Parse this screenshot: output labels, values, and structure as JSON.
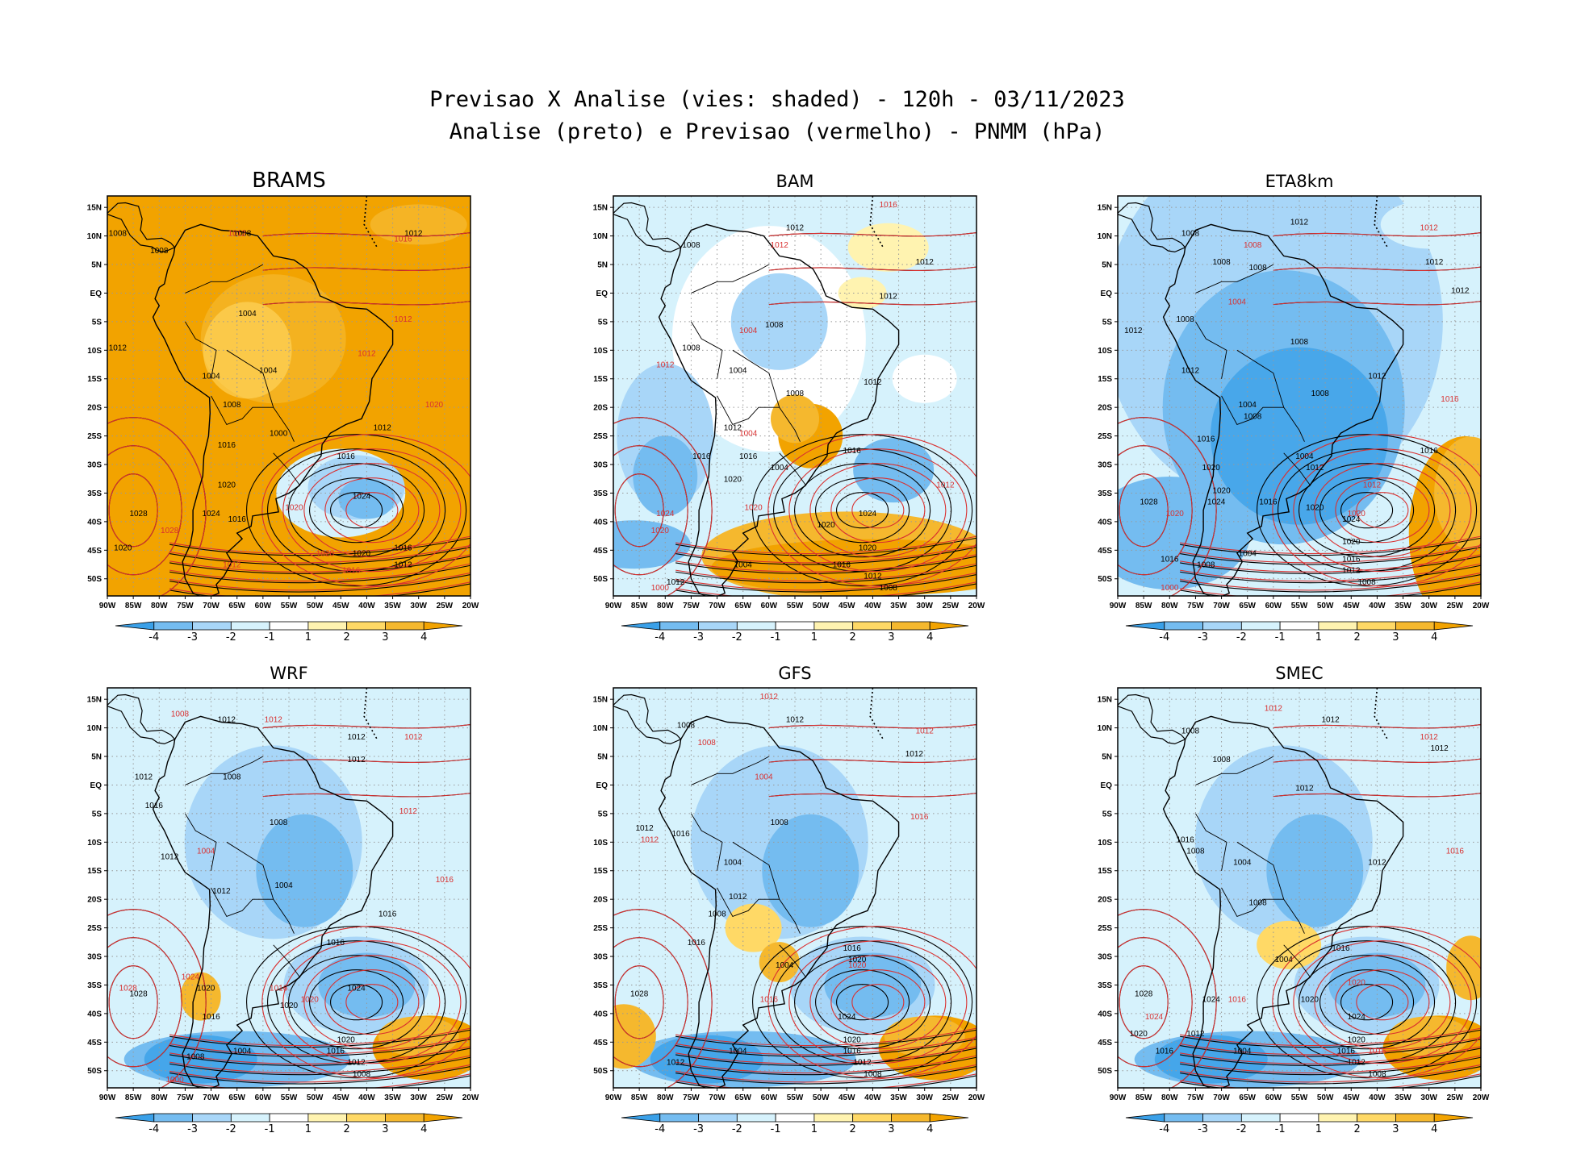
{
  "title": {
    "line1": "Previsao X Analise (vies: shaded) - 120h - 03/11/2023",
    "line2": "Analise (preto) e Previsao (vermelho) - PNMM (hPa)"
  },
  "axes": {
    "lon_labels": [
      "90W",
      "85W",
      "80W",
      "75W",
      "70W",
      "65W",
      "60W",
      "55W",
      "50W",
      "45W",
      "40W",
      "35W",
      "30W",
      "25W",
      "20W"
    ],
    "lat_labels": [
      "15N",
      "10N",
      "5N",
      "EQ",
      "5S",
      "10S",
      "15S",
      "20S",
      "25S",
      "30S",
      "35S",
      "40S",
      "45S",
      "50S"
    ],
    "lon_range": [
      -90,
      -20
    ],
    "lat_range": [
      -53,
      17
    ]
  },
  "colorbar": {
    "labels": [
      "-4",
      "-3",
      "-2",
      "-1",
      "1",
      "2",
      "3",
      "4"
    ],
    "colors": [
      "#3aa0e8",
      "#74bcf0",
      "#a8d6f8",
      "#d6f2fc",
      "#ffffff",
      "#fff3b0",
      "#ffd966",
      "#f5b82e",
      "#f2a300"
    ]
  },
  "colors": {
    "analysis": "#000000",
    "forecast": "#d93030",
    "land_outline": "#000000",
    "grid": "#999999"
  },
  "panels": [
    {
      "name": "BRAMS",
      "bias": "warm",
      "labels_black": [
        {
          "t": "1008",
          "lon": -88,
          "lat": 10
        },
        {
          "t": "1008",
          "lon": -80,
          "lat": 7
        },
        {
          "t": "1008",
          "lon": -64,
          "lat": 10
        },
        {
          "t": "1012",
          "lon": -31,
          "lat": 10
        },
        {
          "t": "1004",
          "lon": -63,
          "lat": -4
        },
        {
          "t": "1012",
          "lon": -88,
          "lat": -10
        },
        {
          "t": "1004",
          "lon": -70,
          "lat": -15
        },
        {
          "t": "1004",
          "lon": -59,
          "lat": -14
        },
        {
          "t": "1008",
          "lon": -66,
          "lat": -20
        },
        {
          "t": "1012",
          "lon": -37,
          "lat": -24
        },
        {
          "t": "1000",
          "lon": -57,
          "lat": -25
        },
        {
          "t": "1016",
          "lon": -67,
          "lat": -27
        },
        {
          "t": "1016",
          "lon": -44,
          "lat": -29
        },
        {
          "t": "1020",
          "lon": -67,
          "lat": -34
        },
        {
          "t": "1024",
          "lon": -41,
          "lat": -36
        },
        {
          "t": "1028",
          "lon": -84,
          "lat": -39
        },
        {
          "t": "1024",
          "lon": -70,
          "lat": -39
        },
        {
          "t": "1016",
          "lon": -65,
          "lat": -40
        },
        {
          "t": "1020",
          "lon": -87,
          "lat": -45
        },
        {
          "t": "1020",
          "lon": -41,
          "lat": -46
        },
        {
          "t": "1016",
          "lon": -33,
          "lat": -45
        },
        {
          "t": "1012",
          "lon": -33,
          "lat": -48
        }
      ],
      "labels_red": [
        {
          "t": "1016",
          "lon": -33,
          "lat": 9
        },
        {
          "t": "1012",
          "lon": -65,
          "lat": 10
        },
        {
          "t": "1012",
          "lon": -33,
          "lat": -5
        },
        {
          "t": "1012",
          "lon": -40,
          "lat": -11
        },
        {
          "t": "1020",
          "lon": -27,
          "lat": -20
        },
        {
          "t": "1020",
          "lon": -54,
          "lat": -38
        },
        {
          "t": "1020",
          "lon": -48,
          "lat": -46
        },
        {
          "t": "1016",
          "lon": -43,
          "lat": -49
        },
        {
          "t": "1012",
          "lon": -66,
          "lat": -48
        },
        {
          "t": "1028",
          "lon": -78,
          "lat": -42
        }
      ]
    },
    {
      "name": "BAM",
      "bias": "cold",
      "labels_black": [
        {
          "t": "1008",
          "lon": -75,
          "lat": 8
        },
        {
          "t": "1012",
          "lon": -55,
          "lat": 11
        },
        {
          "t": "1012",
          "lon": -30,
          "lat": 5
        },
        {
          "t": "1012",
          "lon": -37,
          "lat": -1
        },
        {
          "t": "1008",
          "lon": -59,
          "lat": -6
        },
        {
          "t": "1008",
          "lon": -75,
          "lat": -10
        },
        {
          "t": "1004",
          "lon": -66,
          "lat": -14
        },
        {
          "t": "1012",
          "lon": -40,
          "lat": -16
        },
        {
          "t": "1008",
          "lon": -55,
          "lat": -18
        },
        {
          "t": "1012",
          "lon": -67,
          "lat": -24
        },
        {
          "t": "1016",
          "lon": -73,
          "lat": -29
        },
        {
          "t": "1016",
          "lon": -64,
          "lat": -29
        },
        {
          "t": "1004",
          "lon": -58,
          "lat": -31
        },
        {
          "t": "1020",
          "lon": -67,
          "lat": -33
        },
        {
          "t": "1016",
          "lon": -44,
          "lat": -28
        },
        {
          "t": "1024",
          "lon": -41,
          "lat": -39
        },
        {
          "t": "1020",
          "lon": -49,
          "lat": -41
        },
        {
          "t": "1020",
          "lon": -41,
          "lat": -45
        },
        {
          "t": "1016",
          "lon": -46,
          "lat": -48
        },
        {
          "t": "1012",
          "lon": -40,
          "lat": -50
        },
        {
          "t": "1008",
          "lon": -37,
          "lat": -52
        },
        {
          "t": "1004",
          "lon": -65,
          "lat": -48
        },
        {
          "t": "1012",
          "lon": -78,
          "lat": -51
        }
      ],
      "labels_red": [
        {
          "t": "1016",
          "lon": -37,
          "lat": 15
        },
        {
          "t": "1012",
          "lon": -58,
          "lat": 8
        },
        {
          "t": "1004",
          "lon": -64,
          "lat": -7
        },
        {
          "t": "1012",
          "lon": -80,
          "lat": -13
        },
        {
          "t": "1024",
          "lon": -80,
          "lat": -39
        },
        {
          "t": "1020",
          "lon": -81,
          "lat": -42
        },
        {
          "t": "1020",
          "lon": -63,
          "lat": -38
        },
        {
          "t": "1012",
          "lon": -26,
          "lat": -34
        },
        {
          "t": "1000",
          "lon": -81,
          "lat": -52
        },
        {
          "t": "1004",
          "lon": -64,
          "lat": -25
        }
      ]
    },
    {
      "name": "ETA8km",
      "bias": "cold",
      "labels_black": [
        {
          "t": "1012",
          "lon": -55,
          "lat": 12
        },
        {
          "t": "1008",
          "lon": -76,
          "lat": 10
        },
        {
          "t": "1008",
          "lon": -70,
          "lat": 5
        },
        {
          "t": "1008",
          "lon": -63,
          "lat": 4
        },
        {
          "t": "1012",
          "lon": -29,
          "lat": 5
        },
        {
          "t": "1012",
          "lon": -24,
          "lat": 0
        },
        {
          "t": "1008",
          "lon": -77,
          "lat": -5
        },
        {
          "t": "1012",
          "lon": -87,
          "lat": -7
        },
        {
          "t": "1008",
          "lon": -55,
          "lat": -9
        },
        {
          "t": "1012",
          "lon": -76,
          "lat": -14
        },
        {
          "t": "1012",
          "lon": -40,
          "lat": -15
        },
        {
          "t": "1008",
          "lon": -51,
          "lat": -18
        },
        {
          "t": "1004",
          "lon": -65,
          "lat": -20
        },
        {
          "t": "1008",
          "lon": -64,
          "lat": -22
        },
        {
          "t": "1016",
          "lon": -73,
          "lat": -26
        },
        {
          "t": "1004",
          "lon": -54,
          "lat": -29
        },
        {
          "t": "1016",
          "lon": -30,
          "lat": -28
        },
        {
          "t": "1020",
          "lon": -72,
          "lat": -31
        },
        {
          "t": "1020",
          "lon": -70,
          "lat": -35
        },
        {
          "t": "1012",
          "lon": -52,
          "lat": -31
        },
        {
          "t": "1016",
          "lon": -61,
          "lat": -37
        },
        {
          "t": "1020",
          "lon": -52,
          "lat": -38
        },
        {
          "t": "1024",
          "lon": -45,
          "lat": -40
        },
        {
          "t": "1028",
          "lon": -84,
          "lat": -37
        },
        {
          "t": "1024",
          "lon": -71,
          "lat": -37
        },
        {
          "t": "1020",
          "lon": -45,
          "lat": -44
        },
        {
          "t": "1016",
          "lon": -45,
          "lat": -47
        },
        {
          "t": "1012",
          "lon": -45,
          "lat": -49
        },
        {
          "t": "1008",
          "lon": -42,
          "lat": -51
        },
        {
          "t": "1004",
          "lon": -65,
          "lat": -46
        },
        {
          "t": "1016",
          "lon": -80,
          "lat": -47
        },
        {
          "t": "1008",
          "lon": -73,
          "lat": -48
        }
      ],
      "labels_red": [
        {
          "t": "1012",
          "lon": -30,
          "lat": 11
        },
        {
          "t": "1008",
          "lon": -64,
          "lat": 8
        },
        {
          "t": "1004",
          "lon": -67,
          "lat": -2
        },
        {
          "t": "1016",
          "lon": -26,
          "lat": -19
        },
        {
          "t": "1012",
          "lon": -41,
          "lat": -34
        },
        {
          "t": "1020",
          "lon": -44,
          "lat": -39
        },
        {
          "t": "1020",
          "lon": -79,
          "lat": -39
        },
        {
          "t": "1000",
          "lon": -80,
          "lat": -52
        }
      ]
    },
    {
      "name": "WRF",
      "bias": "mixed",
      "labels_black": [
        {
          "t": "1012",
          "lon": -67,
          "lat": 11
        },
        {
          "t": "1012",
          "lon": -42,
          "lat": 8
        },
        {
          "t": "1012",
          "lon": -42,
          "lat": 4
        },
        {
          "t": "1012",
          "lon": -83,
          "lat": 1
        },
        {
          "t": "1016",
          "lon": -81,
          "lat": -4
        },
        {
          "t": "1008",
          "lon": -66,
          "lat": 1
        },
        {
          "t": "1008",
          "lon": -57,
          "lat": -7
        },
        {
          "t": "1012",
          "lon": -78,
          "lat": -13
        },
        {
          "t": "1004",
          "lon": -56,
          "lat": -18
        },
        {
          "t": "1012",
          "lon": -68,
          "lat": -19
        },
        {
          "t": "1016",
          "lon": -36,
          "lat": -23
        },
        {
          "t": "1016",
          "lon": -46,
          "lat": -28
        },
        {
          "t": "1020",
          "lon": -71,
          "lat": -36
        },
        {
          "t": "1024",
          "lon": -42,
          "lat": -36
        },
        {
          "t": "1020",
          "lon": -55,
          "lat": -39
        },
        {
          "t": "1028",
          "lon": -84,
          "lat": -37
        },
        {
          "t": "1016",
          "lon": -70,
          "lat": -41
        },
        {
          "t": "1020",
          "lon": -44,
          "lat": -45
        },
        {
          "t": "1016",
          "lon": -46,
          "lat": -47
        },
        {
          "t": "1012",
          "lon": -42,
          "lat": -49
        },
        {
          "t": "1008",
          "lon": -41,
          "lat": -51
        },
        {
          "t": "1004",
          "lon": -64,
          "lat": -47
        },
        {
          "t": "1008",
          "lon": -73,
          "lat": -48
        }
      ],
      "labels_red": [
        {
          "t": "1008",
          "lon": -76,
          "lat": 12
        },
        {
          "t": "1012",
          "lon": -58,
          "lat": 11
        },
        {
          "t": "1012",
          "lon": -31,
          "lat": 8
        },
        {
          "t": "1012",
          "lon": -32,
          "lat": -5
        },
        {
          "t": "1004",
          "lon": -71,
          "lat": -12
        },
        {
          "t": "1016",
          "lon": -25,
          "lat": -17
        },
        {
          "t": "1024",
          "lon": -74,
          "lat": -34
        },
        {
          "t": "1028",
          "lon": -86,
          "lat": -36
        },
        {
          "t": "1016",
          "lon": -57,
          "lat": -36
        },
        {
          "t": "1020",
          "lon": -51,
          "lat": -38
        },
        {
          "t": "1000",
          "lon": -77,
          "lat": -52
        }
      ]
    },
    {
      "name": "GFS",
      "bias": "mixed",
      "labels_black": [
        {
          "t": "1008",
          "lon": -76,
          "lat": 10
        },
        {
          "t": "1012",
          "lon": -55,
          "lat": 11
        },
        {
          "t": "1012",
          "lon": -32,
          "lat": 5
        },
        {
          "t": "1012",
          "lon": -84,
          "lat": -8
        },
        {
          "t": "1016",
          "lon": -77,
          "lat": -9
        },
        {
          "t": "1008",
          "lon": -58,
          "lat": -7
        },
        {
          "t": "1004",
          "lon": -67,
          "lat": -14
        },
        {
          "t": "1012",
          "lon": -66,
          "lat": -20
        },
        {
          "t": "1008",
          "lon": -70,
          "lat": -23
        },
        {
          "t": "1016",
          "lon": -74,
          "lat": -28
        },
        {
          "t": "1016",
          "lon": -44,
          "lat": -29
        },
        {
          "t": "1020",
          "lon": -43,
          "lat": -31
        },
        {
          "t": "1004",
          "lon": -57,
          "lat": -32
        },
        {
          "t": "1028",
          "lon": -85,
          "lat": -37
        },
        {
          "t": "1024",
          "lon": -45,
          "lat": -41
        },
        {
          "t": "1020",
          "lon": -44,
          "lat": -45
        },
        {
          "t": "1016",
          "lon": -44,
          "lat": -47
        },
        {
          "t": "1012",
          "lon": -42,
          "lat": -49
        },
        {
          "t": "1008",
          "lon": -40,
          "lat": -51
        },
        {
          "t": "1004",
          "lon": -66,
          "lat": -47
        },
        {
          "t": "1012",
          "lon": -78,
          "lat": -49
        }
      ],
      "labels_red": [
        {
          "t": "1012",
          "lon": -60,
          "lat": 15
        },
        {
          "t": "1012",
          "lon": -30,
          "lat": 9
        },
        {
          "t": "1008",
          "lon": -72,
          "lat": 7
        },
        {
          "t": "1004",
          "lon": -61,
          "lat": 1
        },
        {
          "t": "1012",
          "lon": -83,
          "lat": -10
        },
        {
          "t": "1016",
          "lon": -31,
          "lat": -6
        },
        {
          "t": "1020",
          "lon": -43,
          "lat": -32
        },
        {
          "t": "1016",
          "lon": -60,
          "lat": -38
        }
      ]
    },
    {
      "name": "SMEC",
      "bias": "mixed",
      "labels_black": [
        {
          "t": "1012",
          "lon": -49,
          "lat": 11
        },
        {
          "t": "1012",
          "lon": -28,
          "lat": 6
        },
        {
          "t": "1008",
          "lon": -76,
          "lat": 9
        },
        {
          "t": "1008",
          "lon": -70,
          "lat": 4
        },
        {
          "t": "1012",
          "lon": -54,
          "lat": -1
        },
        {
          "t": "1016",
          "lon": -77,
          "lat": -10
        },
        {
          "t": "1008",
          "lon": -75,
          "lat": -12
        },
        {
          "t": "1004",
          "lon": -66,
          "lat": -14
        },
        {
          "t": "1012",
          "lon": -40,
          "lat": -14
        },
        {
          "t": "1008",
          "lon": -63,
          "lat": -21
        },
        {
          "t": "1016",
          "lon": -47,
          "lat": -29
        },
        {
          "t": "1004",
          "lon": -58,
          "lat": -31
        },
        {
          "t": "1028",
          "lon": -85,
          "lat": -37
        },
        {
          "t": "1024",
          "lon": -72,
          "lat": -38
        },
        {
          "t": "1020",
          "lon": -53,
          "lat": -38
        },
        {
          "t": "1024",
          "lon": -44,
          "lat": -41
        },
        {
          "t": "1020",
          "lon": -44,
          "lat": -45
        },
        {
          "t": "1016",
          "lon": -46,
          "lat": -47
        },
        {
          "t": "1012",
          "lon": -44,
          "lat": -49
        },
        {
          "t": "1008",
          "lon": -40,
          "lat": -51
        },
        {
          "t": "1004",
          "lon": -66,
          "lat": -47
        },
        {
          "t": "1012",
          "lon": -75,
          "lat": -44
        },
        {
          "t": "1016",
          "lon": -81,
          "lat": -47
        },
        {
          "t": "1020",
          "lon": -86,
          "lat": -44
        }
      ],
      "labels_red": [
        {
          "t": "1012",
          "lon": -60,
          "lat": 13
        },
        {
          "t": "1012",
          "lon": -30,
          "lat": 8
        },
        {
          "t": "1016",
          "lon": -25,
          "lat": -12
        },
        {
          "t": "1016",
          "lon": -67,
          "lat": -38
        },
        {
          "t": "1024",
          "lon": -83,
          "lat": -41
        },
        {
          "t": "1020",
          "lon": -44,
          "lat": -35
        },
        {
          "t": "1016",
          "lon": -40,
          "lat": -47
        }
      ]
    }
  ]
}
